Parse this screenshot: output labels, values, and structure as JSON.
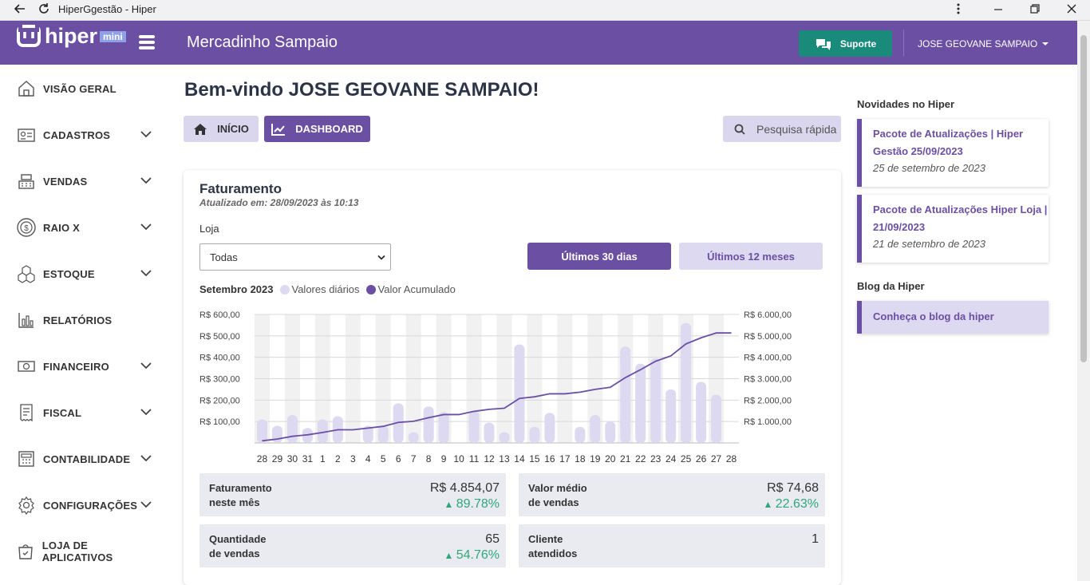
{
  "browser": {
    "title": "HiperGgestão - Hiper"
  },
  "header": {
    "logo_text": "hiper",
    "logo_badge": "mini",
    "store_name": "Mercadinho Sampaio",
    "support_label": "Suporte",
    "user_name": "JOSE GEOVANE SAMPAIO"
  },
  "sidebar": {
    "items": [
      {
        "label": "VISÃO GERAL",
        "icon": "home-icon"
      },
      {
        "label": "CADASTROS",
        "icon": "id-card-icon"
      },
      {
        "label": "VENDAS",
        "icon": "cash-register-icon"
      },
      {
        "label": "RAIO X",
        "icon": "dollar-circle-icon"
      },
      {
        "label": "ESTOQUE",
        "icon": "boxes-icon"
      },
      {
        "label": "RELATÓRIOS",
        "icon": "bar-chart-icon"
      },
      {
        "label": "FINANCEIRO",
        "icon": "money-icon"
      },
      {
        "label": "FISCAL",
        "icon": "receipt-icon"
      },
      {
        "label": "CONTABILIDADE",
        "icon": "calculator-icon"
      },
      {
        "label": "CONFIGURAÇÕES",
        "icon": "gear-icon"
      },
      {
        "label": "LOJA DE APLICATIVOS",
        "icon": "app-store-icon"
      }
    ]
  },
  "main": {
    "welcome": "Bem-vindo JOSE GEOVANE SAMPAIO!",
    "tab_home": "INÍCIO",
    "tab_dashboard": "DASHBOARD",
    "search_placeholder": "Pesquisa rápida"
  },
  "billing": {
    "title": "Faturamento",
    "updated": "Atualizado em: 28/09/2023 às 10:13",
    "store_label": "Loja",
    "store_value": "Todas",
    "btn_30": "Últimos 30 dias",
    "btn_12": "Últimos 12 meses",
    "legend_month": "Setembro 2023",
    "legend_daily": "Valores diários",
    "legend_acc": "Valor Acumulado"
  },
  "stats": {
    "revenue_label1": "Faturamento",
    "revenue_label2": "neste mês",
    "revenue_value": "R$ 4.854,07",
    "revenue_pct": "89.78%",
    "avg_label1": "Valor médio",
    "avg_label2": "de vendas",
    "avg_value": "R$ 74,68",
    "avg_pct": "22.63%",
    "qty_label1": "Quantidade",
    "qty_label2": "de vendas",
    "qty_value": "65",
    "qty_pct": "54.76%",
    "cli_label1": "Cliente",
    "cli_label2": "atendidos",
    "cli_value": "1"
  },
  "news": {
    "title": "Novidades no Hiper",
    "items": [
      {
        "title": "Pacote de Atualizações | Hiper Gestão 25/09/2023",
        "date": "25 de setembro de 2023"
      },
      {
        "title": "Pacote de Atualizações Hiper Loja | 21/09/2023",
        "date": "21 de setembro de 2023"
      }
    ],
    "blog_title": "Blog da Hiper",
    "blog_link": "Conheça o blog da hiper"
  },
  "colors": {
    "brand": "#6b4fa3",
    "support": "#1a8a7a",
    "bar": "#dcd9f0",
    "line": "#6b4fa3",
    "up": "#2fa77a"
  },
  "chart_data": {
    "type": "bar",
    "categories": [
      "28",
      "29",
      "30",
      "31",
      "1",
      "2",
      "3",
      "4",
      "5",
      "6",
      "7",
      "8",
      "9",
      "10",
      "11",
      "12",
      "13",
      "14",
      "15",
      "16",
      "17",
      "18",
      "19",
      "20",
      "21",
      "22",
      "23",
      "24",
      "25",
      "26",
      "27",
      "28"
    ],
    "series": [
      {
        "name": "Valores diários",
        "values": [
          110,
          80,
          130,
          70,
          110,
          125,
          0,
          80,
          80,
          185,
          50,
          170,
          145,
          0,
          150,
          95,
          50,
          460,
          75,
          140,
          0,
          75,
          130,
          100,
          450,
          370,
          395,
          250,
          560,
          285,
          225,
          0
        ]
      },
      {
        "name": "Valor Acumulado",
        "values": [
          100,
          180,
          310,
          380,
          490,
          615,
          615,
          695,
          775,
          960,
          1010,
          1180,
          1325,
          1325,
          1475,
          1570,
          1620,
          2080,
          2155,
          2295,
          2295,
          2370,
          2500,
          2600,
          3050,
          3420,
          3815,
          4065,
          4625,
          4910,
          5135,
          5135
        ]
      }
    ],
    "ylim": [
      0,
      600
    ],
    "y2lim": [
      0,
      6000
    ],
    "yticks": [
      "R$ 600,00",
      "R$ 500,00",
      "R$ 400,00",
      "R$ 300,00",
      "R$ 200,00",
      "R$ 100,00"
    ],
    "y2ticks": [
      "R$ 6.000,00",
      "R$ 5.000,00",
      "R$ 4.000,00",
      "R$ 3.000,00",
      "R$ 2.000,00",
      "R$ 1.000,00"
    ],
    "grid": true
  }
}
